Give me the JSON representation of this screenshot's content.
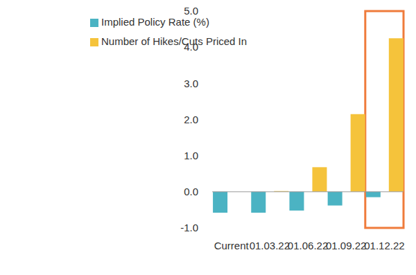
{
  "chart_data": {
    "type": "bar",
    "categories": [
      "Current",
      "01.03.22",
      "01.06.22",
      "01.09.22",
      "01.12.22"
    ],
    "series": [
      {
        "name": "Implied Policy Rate (%)",
        "color": "#4bb3c3",
        "values": [
          -0.58,
          -0.58,
          -0.52,
          -0.38,
          -0.15
        ]
      },
      {
        "name": "Number of Hikes/Cuts Priced In",
        "color": "#f5c33b",
        "values": [
          0,
          0.02,
          0.68,
          2.15,
          4.25
        ]
      }
    ],
    "ylim": [
      -1,
      5
    ],
    "yticks": [
      {
        "value": -1,
        "label": "-1.0"
      },
      {
        "value": 0,
        "label": "0.0"
      },
      {
        "value": 1,
        "label": "1.0"
      },
      {
        "value": 2,
        "label": "2.0"
      },
      {
        "value": 3,
        "label": "3.0"
      },
      {
        "value": 4,
        "label": "4.0"
      },
      {
        "value": 5,
        "label": "5.0"
      }
    ],
    "grid": false,
    "legend": "upper left"
  }
}
